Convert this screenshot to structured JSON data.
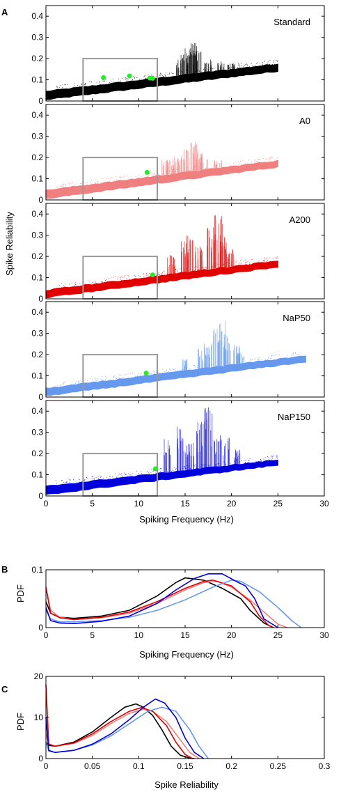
{
  "figure": {
    "panel_letters": {
      "A": "A",
      "B": "B",
      "C": "C"
    },
    "panel_a_x_label": "Spiking Frequency (Hz)",
    "panel_a_y_label": "Spike Reliability",
    "panel_a_x_ticks": [
      "0",
      "5",
      "10",
      "15",
      "20",
      "25",
      "30"
    ],
    "panel_a_y_ticks": [
      "0",
      "0.1",
      "0.2",
      "0.3",
      "0.4"
    ],
    "panel_b_x_label": "Spiking Frequency (Hz)",
    "panel_b_y_label": "PDF",
    "panel_b_x_ticks": [
      "0",
      "5",
      "10",
      "15",
      "20",
      "25",
      "30"
    ],
    "panel_b_y_ticks": [
      "0",
      "0.1"
    ],
    "panel_c_x_label": "Spike Reliability",
    "panel_c_y_label": "PDF",
    "panel_c_x_ticks": [
      "0",
      "0.05",
      "0.1",
      "0.15",
      "0.2",
      "0.25",
      "0.3"
    ],
    "panel_c_y_ticks": [
      "0",
      "10",
      "20"
    ],
    "colors": {
      "Standard": "#000000",
      "A0": "#f08080",
      "A200": "#e00000",
      "NaP50": "#6699ee",
      "NaP150": "#0000dd",
      "marker": "#22ee22",
      "box": "#999999"
    }
  },
  "chart_data": [
    {
      "type": "scatter",
      "name": "Standard",
      "label": "Standard",
      "color": "#000000",
      "xlim": [
        0,
        30
      ],
      "ylim": [
        0,
        0.45
      ],
      "band": {
        "x": [
          0,
          25
        ],
        "lower": [
          0.01,
          0.145
        ],
        "upper": [
          0.045,
          0.175
        ]
      },
      "spikes": [
        [
          15,
          0.22
        ],
        [
          15.3,
          0.25
        ],
        [
          16,
          0.28
        ],
        [
          16.3,
          0.24
        ],
        [
          17.5,
          0.2
        ],
        [
          18.8,
          0.19
        ],
        [
          20,
          0.18
        ],
        [
          14.5,
          0.21
        ]
      ],
      "markers": [
        [
          6.2,
          0.11
        ],
        [
          9,
          0.118
        ],
        [
          11.2,
          0.108
        ],
        [
          11.5,
          0.107
        ]
      ],
      "box": {
        "x": [
          4,
          12
        ],
        "y": [
          0,
          0.2
        ]
      }
    },
    {
      "type": "scatter",
      "name": "A0",
      "label": "A0",
      "color": "#f08080",
      "xlim": [
        0,
        30
      ],
      "ylim": [
        0,
        0.45
      ],
      "band": {
        "x": [
          0,
          25
        ],
        "lower": [
          0.01,
          0.16
        ],
        "upper": [
          0.045,
          0.185
        ]
      },
      "spikes": [
        [
          14,
          0.21
        ],
        [
          15,
          0.25
        ],
        [
          15.8,
          0.28
        ],
        [
          16.5,
          0.24
        ],
        [
          17,
          0.23
        ],
        [
          18.5,
          0.19
        ],
        [
          13.5,
          0.19
        ],
        [
          12.8,
          0.19
        ]
      ],
      "markers": [
        [
          10.9,
          0.13
        ]
      ],
      "box": {
        "x": [
          4,
          12
        ],
        "y": [
          0,
          0.2
        ]
      }
    },
    {
      "type": "scatter",
      "name": "A200",
      "label": "A200",
      "color": "#e00000",
      "xlim": [
        0,
        30
      ],
      "ylim": [
        0,
        0.45
      ],
      "band": {
        "x": [
          0,
          25
        ],
        "lower": [
          0.01,
          0.155
        ],
        "upper": [
          0.04,
          0.18
        ]
      },
      "spikes": [
        [
          13.5,
          0.21
        ],
        [
          15,
          0.28
        ],
        [
          15.6,
          0.3
        ],
        [
          16.5,
          0.25
        ],
        [
          17.8,
          0.34
        ],
        [
          18.6,
          0.4
        ],
        [
          19,
          0.32
        ],
        [
          19.8,
          0.24
        ]
      ],
      "markers": [
        [
          11.5,
          0.113
        ]
      ],
      "box": {
        "x": [
          4,
          12
        ],
        "y": [
          0,
          0.2
        ]
      }
    },
    {
      "type": "scatter",
      "name": "NaP50",
      "label": "NaP50",
      "color": "#6699ee",
      "xlim": [
        0,
        30
      ],
      "ylim": [
        0,
        0.45
      ],
      "band": {
        "x": [
          0,
          28
        ],
        "lower": [
          0.01,
          0.17
        ],
        "upper": [
          0.04,
          0.195
        ]
      },
      "spikes": [
        [
          17.5,
          0.26
        ],
        [
          18.5,
          0.33
        ],
        [
          19,
          0.36
        ],
        [
          19.5,
          0.3
        ],
        [
          20.5,
          0.25
        ],
        [
          21,
          0.21
        ],
        [
          16.8,
          0.23
        ],
        [
          15,
          0.18
        ]
      ],
      "markers": [
        [
          10.8,
          0.113
        ]
      ],
      "box": {
        "x": [
          4,
          12
        ],
        "y": [
          0,
          0.2
        ]
      }
    },
    {
      "type": "scatter",
      "name": "NaP150",
      "label": "NaP150",
      "color": "#0000dd",
      "xlim": [
        0,
        30
      ],
      "ylim": [
        0,
        0.45
      ],
      "band": {
        "x": [
          0,
          25
        ],
        "lower": [
          0.01,
          0.15
        ],
        "upper": [
          0.045,
          0.17
        ]
      },
      "spikes": [
        [
          13,
          0.3
        ],
        [
          14.5,
          0.33
        ],
        [
          15.5,
          0.28
        ],
        [
          16.5,
          0.35
        ],
        [
          17.5,
          0.42
        ],
        [
          18.5,
          0.3
        ],
        [
          19.5,
          0.28
        ],
        [
          20.5,
          0.22
        ]
      ],
      "markers": [
        [
          11.8,
          0.128
        ]
      ],
      "box": {
        "x": [
          4,
          12
        ],
        "y": [
          0,
          0.2
        ]
      }
    },
    {
      "type": "line",
      "name": "B",
      "xlim": [
        0,
        30
      ],
      "ylim": [
        0,
        0.1
      ],
      "series": [
        {
          "color": "#000000",
          "x": [
            0,
            0.5,
            1.5,
            3,
            6,
            9,
            12,
            14,
            15,
            17,
            19,
            21,
            22,
            23.5,
            24.5
          ],
          "y": [
            0.045,
            0.025,
            0.018,
            0.016,
            0.02,
            0.03,
            0.055,
            0.078,
            0.086,
            0.082,
            0.068,
            0.05,
            0.03,
            0.008,
            0
          ]
        },
        {
          "color": "#f08080",
          "x": [
            0,
            0.5,
            1.5,
            3,
            6,
            9,
            12,
            15,
            17,
            18.5,
            20,
            22,
            24,
            25,
            26
          ],
          "y": [
            0.07,
            0.03,
            0.018,
            0.014,
            0.017,
            0.025,
            0.042,
            0.065,
            0.078,
            0.08,
            0.07,
            0.048,
            0.02,
            0.006,
            0
          ]
        },
        {
          "color": "#e00000",
          "x": [
            0,
            0.5,
            1.5,
            3,
            6,
            9,
            12,
            15,
            17,
            18,
            20,
            22,
            23,
            24,
            24.5
          ],
          "y": [
            0.07,
            0.025,
            0.017,
            0.014,
            0.018,
            0.027,
            0.045,
            0.068,
            0.08,
            0.082,
            0.072,
            0.045,
            0.02,
            0.004,
            0
          ]
        },
        {
          "color": "#6699ee",
          "x": [
            0,
            0.5,
            1.5,
            3,
            6,
            9,
            12,
            15,
            18,
            20,
            21,
            23,
            25,
            26.5,
            27.5
          ],
          "y": [
            0.03,
            0.015,
            0.01,
            0.01,
            0.012,
            0.018,
            0.03,
            0.048,
            0.07,
            0.082,
            0.08,
            0.062,
            0.035,
            0.012,
            0
          ]
        },
        {
          "color": "#0000dd",
          "x": [
            0,
            0.5,
            1.5,
            3,
            6,
            9,
            12,
            14,
            16,
            17.5,
            19,
            20.5,
            21.5,
            22.5,
            23.5,
            25
          ],
          "y": [
            0.035,
            0.012,
            0.008,
            0.007,
            0.011,
            0.02,
            0.042,
            0.065,
            0.085,
            0.093,
            0.093,
            0.08,
            0.072,
            0.05,
            0.015,
            0
          ]
        }
      ]
    },
    {
      "type": "line",
      "name": "C",
      "xlim": [
        0,
        0.3
      ],
      "ylim": [
        0,
        20
      ],
      "series": [
        {
          "color": "#000000",
          "x": [
            0,
            0.003,
            0.01,
            0.03,
            0.05,
            0.07,
            0.085,
            0.097,
            0.105,
            0.115,
            0.125,
            0.135,
            0.145,
            0.155,
            0.16
          ],
          "y": [
            4,
            3.2,
            3,
            4,
            6.5,
            10,
            12.5,
            13.3,
            12.5,
            10.5,
            7,
            3,
            0.8,
            0.1,
            0
          ]
        },
        {
          "color": "#f08080",
          "x": [
            0,
            0.003,
            0.01,
            0.03,
            0.05,
            0.07,
            0.09,
            0.105,
            0.115,
            0.13,
            0.145,
            0.155,
            0.165
          ],
          "y": [
            6,
            3.5,
            3,
            3.7,
            5.6,
            8.5,
            11,
            12,
            11.5,
            9,
            4.5,
            1.5,
            0
          ]
        },
        {
          "color": "#e00000",
          "x": [
            0,
            0.003,
            0.01,
            0.03,
            0.05,
            0.07,
            0.09,
            0.103,
            0.115,
            0.13,
            0.14,
            0.15,
            0.158
          ],
          "y": [
            18,
            3.5,
            3,
            3.8,
            6,
            9,
            11.5,
            12.4,
            11.5,
            8,
            4,
            1,
            0
          ]
        },
        {
          "color": "#6699ee",
          "x": [
            0,
            0.003,
            0.01,
            0.03,
            0.05,
            0.07,
            0.09,
            0.11,
            0.125,
            0.14,
            0.155,
            0.165,
            0.175
          ],
          "y": [
            4,
            1.8,
            1.5,
            2,
            3.3,
            5.5,
            8.5,
            11.5,
            12.5,
            11.5,
            7,
            3,
            0
          ]
        },
        {
          "color": "#0000dd",
          "x": [
            0,
            0.003,
            0.01,
            0.03,
            0.05,
            0.07,
            0.09,
            0.105,
            0.118,
            0.128,
            0.14,
            0.15,
            0.16,
            0.17
          ],
          "y": [
            10,
            2,
            1.5,
            2,
            3.5,
            6,
            9.5,
            12.5,
            14.5,
            13.5,
            10,
            5,
            1.5,
            0
          ]
        }
      ]
    }
  ]
}
